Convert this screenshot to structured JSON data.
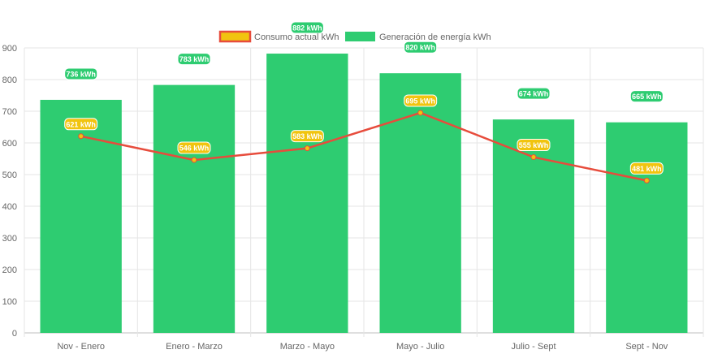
{
  "chart_data": {
    "type": "bar",
    "categories": [
      "Nov - Enero",
      "Enero - Marzo",
      "Marzo - Mayo",
      "Mayo - Julio",
      "Julio - Sept",
      "Sept - Nov"
    ],
    "series": [
      {
        "name": "Generación de energía kWh",
        "type": "bar",
        "values": [
          736,
          783,
          882,
          820,
          674,
          665
        ],
        "labels": [
          "736 kWh",
          "783 kWh",
          "882 kWh",
          "820 kWh",
          "674 kWh",
          "665 kWh"
        ],
        "color": "#2ecc71"
      },
      {
        "name": "Consumo actual kWh",
        "type": "line",
        "values": [
          621,
          546,
          583,
          695,
          555,
          481
        ],
        "labels": [
          "621 kWh",
          "546 kWh",
          "583 kWh",
          "695 kWh",
          "555 kWh",
          "481 kWh"
        ],
        "color": "#e74c3c",
        "point_color": "#f1c40f"
      }
    ],
    "ylim": [
      0,
      900
    ],
    "yticks": [
      "0",
      "100",
      "200",
      "300",
      "400",
      "500",
      "600",
      "700",
      "800",
      "900"
    ],
    "grid": true,
    "legend_position": "top"
  }
}
